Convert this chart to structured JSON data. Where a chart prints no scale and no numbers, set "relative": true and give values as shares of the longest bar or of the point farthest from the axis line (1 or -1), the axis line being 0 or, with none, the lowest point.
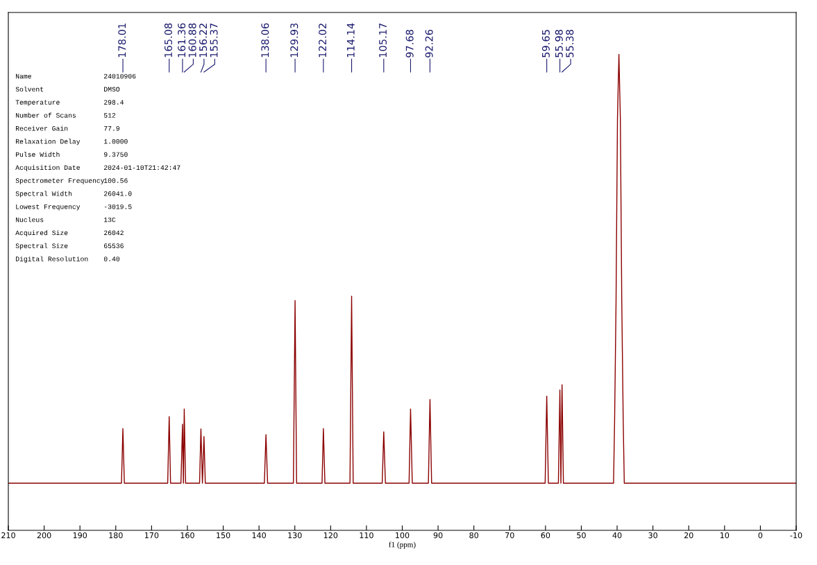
{
  "chart_data": {
    "type": "line",
    "relative": true,
    "xlabel": "f1 (ppm)",
    "xlim": [
      210,
      -10
    ],
    "xticks": [
      210,
      200,
      190,
      180,
      170,
      160,
      150,
      140,
      130,
      120,
      110,
      100,
      90,
      80,
      70,
      60,
      50,
      40,
      30,
      20,
      10,
      0,
      -10
    ],
    "tick_labels": "x",
    "grid": false,
    "legend": false,
    "marker": "none",
    "line_style": "solid",
    "series": [
      {
        "color": "#8b0000",
        "x": [
          210,
          178.4,
          178.01,
          177.6,
          165.5,
          165.08,
          164.7,
          161.8,
          161.36,
          161.1,
          160.88,
          160.5,
          156.6,
          156.22,
          155.8,
          155.37,
          155.0,
          138.5,
          138.06,
          137.6,
          130.4,
          129.93,
          129.5,
          122.4,
          122.02,
          121.6,
          114.6,
          114.14,
          113.7,
          105.6,
          105.17,
          104.7,
          98.1,
          97.68,
          97.2,
          92.7,
          92.26,
          91.8,
          60.1,
          59.65,
          59.2,
          56.4,
          55.98,
          55.7,
          55.38,
          55.0,
          41.0,
          40.7,
          40.3,
          39.9,
          39.5,
          39.1,
          38.7,
          38.3,
          38.0,
          -10
        ],
        "values": [
          0.099,
          0.099,
          0.214,
          0.099,
          0.099,
          0.239,
          0.099,
          0.099,
          0.223,
          0.099,
          0.255,
          0.099,
          0.099,
          0.213,
          0.099,
          0.197,
          0.099,
          0.099,
          0.201,
          0.099,
          0.099,
          0.483,
          0.099,
          0.099,
          0.214,
          0.099,
          0.099,
          0.492,
          0.099,
          0.099,
          0.207,
          0.099,
          0.099,
          0.255,
          0.099,
          0.099,
          0.275,
          0.099,
          0.099,
          0.282,
          0.099,
          0.099,
          0.295,
          0.099,
          0.306,
          0.099,
          0.099,
          0.23,
          0.48,
          0.866,
          1.0,
          0.866,
          0.48,
          0.23,
          0.099,
          0.099
        ]
      }
    ],
    "annotations": [
      {
        "text": "178.01",
        "x": 178.01
      },
      {
        "text": "165.08",
        "x": 165.08
      },
      {
        "text": "161.36",
        "x": 161.36
      },
      {
        "text": "160.88",
        "x": 160.88
      },
      {
        "text": "156.22",
        "x": 156.22
      },
      {
        "text": "155.37",
        "x": 155.37
      },
      {
        "text": "138.06",
        "x": 138.06
      },
      {
        "text": "129.93",
        "x": 129.93
      },
      {
        "text": "122.02",
        "x": 122.02
      },
      {
        "text": "114.14",
        "x": 114.14
      },
      {
        "text": "105.17",
        "x": 105.17
      },
      {
        "text": "97.68",
        "x": 97.68
      },
      {
        "text": "92.26",
        "x": 92.26
      },
      {
        "text": "59.65",
        "x": 59.65
      },
      {
        "text": "55.98",
        "x": 55.98
      },
      {
        "text": "55.38",
        "x": 55.38
      },
      "Name",
      "24010906",
      "Solvent",
      "DMSO",
      "Temperature",
      "298.4",
      "Number of Scans",
      "512",
      "Receiver Gain",
      "77.9",
      "Relaxation Delay",
      "1.0000",
      "Pulse Width",
      "9.3750",
      "Acquisition Date",
      "2024-01-10T21:42:47",
      "Spectrometer Frequency",
      "100.56",
      "Spectral Width",
      "26041.0",
      "Lowest Frequency",
      "-3019.5",
      "Nucleus",
      "13C",
      "Acquired Size",
      "26042",
      "Spectral Size",
      "65536",
      "Digital Resolution",
      "0.40"
    ]
  }
}
